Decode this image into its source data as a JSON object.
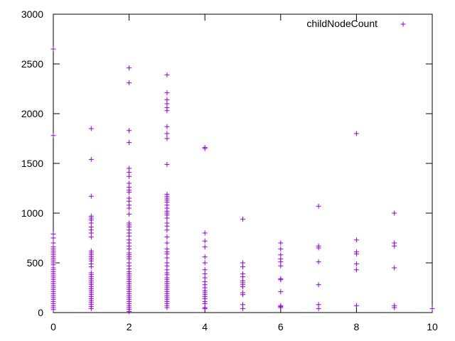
{
  "chart_data": {
    "type": "scatter",
    "title": "",
    "xlabel": "",
    "ylabel": "",
    "xlim": [
      0,
      10
    ],
    "ylim": [
      0,
      3000
    ],
    "xticks": [
      0,
      2,
      4,
      6,
      8,
      10
    ],
    "yticks": [
      0,
      500,
      1000,
      1500,
      2000,
      2500,
      3000
    ],
    "grid": false,
    "legend_position": "top-right",
    "marker": "plus",
    "series": [
      {
        "name": "childNodeCount",
        "color": "#9400d3",
        "points": [
          [
            0,
            2650
          ],
          [
            0,
            1780
          ],
          [
            0,
            790
          ],
          [
            0,
            750
          ],
          [
            0,
            700
          ],
          [
            0,
            660
          ],
          [
            0,
            640
          ],
          [
            0,
            620
          ],
          [
            0,
            600
          ],
          [
            0,
            580
          ],
          [
            0,
            560
          ],
          [
            0,
            540
          ],
          [
            0,
            520
          ],
          [
            0,
            500
          ],
          [
            0,
            480
          ],
          [
            0,
            450
          ],
          [
            0,
            430
          ],
          [
            0,
            410
          ],
          [
            0,
            390
          ],
          [
            0,
            370
          ],
          [
            0,
            350
          ],
          [
            0,
            330
          ],
          [
            0,
            310
          ],
          [
            0,
            290
          ],
          [
            0,
            270
          ],
          [
            0,
            250
          ],
          [
            0,
            230
          ],
          [
            0,
            210
          ],
          [
            0,
            190
          ],
          [
            0,
            170
          ],
          [
            0,
            150
          ],
          [
            0,
            130
          ],
          [
            0,
            110
          ],
          [
            0,
            90
          ],
          [
            0,
            70
          ],
          [
            0,
            50
          ],
          [
            0,
            30
          ],
          [
            1,
            1850
          ],
          [
            1,
            1540
          ],
          [
            1,
            1170
          ],
          [
            1,
            970
          ],
          [
            1,
            950
          ],
          [
            1,
            930
          ],
          [
            1,
            900
          ],
          [
            1,
            860
          ],
          [
            1,
            830
          ],
          [
            1,
            800
          ],
          [
            1,
            760
          ],
          [
            1,
            620
          ],
          [
            1,
            600
          ],
          [
            1,
            580
          ],
          [
            1,
            560
          ],
          [
            1,
            540
          ],
          [
            1,
            520
          ],
          [
            1,
            490
          ],
          [
            1,
            460
          ],
          [
            1,
            400
          ],
          [
            1,
            380
          ],
          [
            1,
            360
          ],
          [
            1,
            340
          ],
          [
            1,
            320
          ],
          [
            1,
            300
          ],
          [
            1,
            280
          ],
          [
            1,
            260
          ],
          [
            1,
            240
          ],
          [
            1,
            220
          ],
          [
            1,
            200
          ],
          [
            1,
            180
          ],
          [
            1,
            160
          ],
          [
            1,
            140
          ],
          [
            1,
            120
          ],
          [
            1,
            100
          ],
          [
            1,
            80
          ],
          [
            1,
            60
          ],
          [
            1,
            40
          ],
          [
            2,
            2460
          ],
          [
            2,
            2310
          ],
          [
            2,
            1830
          ],
          [
            2,
            1710
          ],
          [
            2,
            1450
          ],
          [
            2,
            1410
          ],
          [
            2,
            1370
          ],
          [
            2,
            1300
          ],
          [
            2,
            1260
          ],
          [
            2,
            1230
          ],
          [
            2,
            1210
          ],
          [
            2,
            1150
          ],
          [
            2,
            1120
          ],
          [
            2,
            1080
          ],
          [
            2,
            1050
          ],
          [
            2,
            990
          ],
          [
            2,
            900
          ],
          [
            2,
            880
          ],
          [
            2,
            860
          ],
          [
            2,
            830
          ],
          [
            2,
            800
          ],
          [
            2,
            770
          ],
          [
            2,
            730
          ],
          [
            2,
            700
          ],
          [
            2,
            670
          ],
          [
            2,
            640
          ],
          [
            2,
            600
          ],
          [
            2,
            580
          ],
          [
            2,
            560
          ],
          [
            2,
            540
          ],
          [
            2,
            500
          ],
          [
            2,
            470
          ],
          [
            2,
            440
          ],
          [
            2,
            410
          ],
          [
            2,
            390
          ],
          [
            2,
            370
          ],
          [
            2,
            350
          ],
          [
            2,
            330
          ],
          [
            2,
            310
          ],
          [
            2,
            290
          ],
          [
            2,
            270
          ],
          [
            2,
            250
          ],
          [
            2,
            230
          ],
          [
            2,
            210
          ],
          [
            2,
            190
          ],
          [
            2,
            170
          ],
          [
            2,
            150
          ],
          [
            2,
            130
          ],
          [
            2,
            110
          ],
          [
            2,
            90
          ],
          [
            2,
            70
          ],
          [
            2,
            50
          ],
          [
            2,
            30
          ],
          [
            2,
            10
          ],
          [
            3,
            2390
          ],
          [
            3,
            2210
          ],
          [
            3,
            2140
          ],
          [
            3,
            2100
          ],
          [
            3,
            2060
          ],
          [
            3,
            2030
          ],
          [
            3,
            1870
          ],
          [
            3,
            1800
          ],
          [
            3,
            1750
          ],
          [
            3,
            1490
          ],
          [
            3,
            1190
          ],
          [
            3,
            1170
          ],
          [
            3,
            1150
          ],
          [
            3,
            1130
          ],
          [
            3,
            1110
          ],
          [
            3,
            1080
          ],
          [
            3,
            1050
          ],
          [
            3,
            1020
          ],
          [
            3,
            1000
          ],
          [
            3,
            980
          ],
          [
            3,
            950
          ],
          [
            3,
            900
          ],
          [
            3,
            870
          ],
          [
            3,
            830
          ],
          [
            3,
            760
          ],
          [
            3,
            700
          ],
          [
            3,
            640
          ],
          [
            3,
            610
          ],
          [
            3,
            590
          ],
          [
            3,
            550
          ],
          [
            3,
            500
          ],
          [
            3,
            470
          ],
          [
            3,
            430
          ],
          [
            3,
            400
          ],
          [
            3,
            380
          ],
          [
            3,
            350
          ],
          [
            3,
            330
          ],
          [
            3,
            310
          ],
          [
            3,
            290
          ],
          [
            3,
            270
          ],
          [
            3,
            250
          ],
          [
            3,
            230
          ],
          [
            3,
            210
          ],
          [
            3,
            190
          ],
          [
            3,
            170
          ],
          [
            3,
            150
          ],
          [
            3,
            130
          ],
          [
            3,
            110
          ],
          [
            3,
            90
          ],
          [
            3,
            70
          ],
          [
            3,
            50
          ],
          [
            4,
            1660
          ],
          [
            4,
            1650
          ],
          [
            4,
            800
          ],
          [
            4,
            720
          ],
          [
            4,
            660
          ],
          [
            4,
            560
          ],
          [
            4,
            500
          ],
          [
            4,
            430
          ],
          [
            4,
            390
          ],
          [
            4,
            350
          ],
          [
            4,
            310
          ],
          [
            4,
            280
          ],
          [
            4,
            250
          ],
          [
            4,
            220
          ],
          [
            4,
            200
          ],
          [
            4,
            180
          ],
          [
            4,
            160
          ],
          [
            4,
            140
          ],
          [
            4,
            110
          ],
          [
            4,
            90
          ],
          [
            4,
            50
          ],
          [
            4,
            40
          ],
          [
            5,
            940
          ],
          [
            5,
            500
          ],
          [
            5,
            460
          ],
          [
            5,
            390
          ],
          [
            5,
            360
          ],
          [
            5,
            320
          ],
          [
            5,
            300
          ],
          [
            5,
            280
          ],
          [
            5,
            260
          ],
          [
            5,
            200
          ],
          [
            5,
            180
          ],
          [
            5,
            80
          ],
          [
            5,
            40
          ],
          [
            6,
            700
          ],
          [
            6,
            640
          ],
          [
            6,
            580
          ],
          [
            6,
            540
          ],
          [
            6,
            510
          ],
          [
            6,
            470
          ],
          [
            6,
            340
          ],
          [
            6,
            330
          ],
          [
            6,
            210
          ],
          [
            6,
            70
          ],
          [
            6,
            60
          ],
          [
            6,
            50
          ],
          [
            7,
            1070
          ],
          [
            7,
            670
          ],
          [
            7,
            650
          ],
          [
            7,
            510
          ],
          [
            7,
            280
          ],
          [
            7,
            80
          ],
          [
            7,
            40
          ],
          [
            8,
            1800
          ],
          [
            8,
            730
          ],
          [
            8,
            610
          ],
          [
            8,
            590
          ],
          [
            8,
            490
          ],
          [
            8,
            430
          ],
          [
            8,
            70
          ],
          [
            9,
            1000
          ],
          [
            9,
            700
          ],
          [
            9,
            670
          ],
          [
            9,
            450
          ],
          [
            9,
            70
          ],
          [
            9,
            50
          ],
          [
            10,
            40
          ]
        ]
      }
    ]
  }
}
